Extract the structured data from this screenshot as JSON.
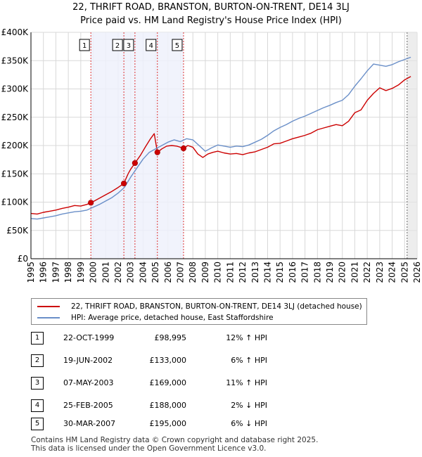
{
  "title_line1": "22, THRIFT ROAD, BRANSTON, BURTON-ON-TRENT, DE14 3LJ",
  "title_line2": "Price paid vs. HM Land Registry's House Price Index (HPI)",
  "colors": {
    "property": "#cc0000",
    "hpi": "#6a8fc8",
    "shade": "#eef1fb",
    "grid": "#d8d8d8",
    "vline": "#dd3333"
  },
  "chart_data": {
    "type": "line",
    "title": "Price paid vs. HM Land Registry's House Price Index (HPI)",
    "xlim": [
      1995,
      2026
    ],
    "ylim": [
      0,
      400000
    ],
    "x_ticks": [
      "1995",
      "1996",
      "1997",
      "1998",
      "1999",
      "2000",
      "2001",
      "2002",
      "2003",
      "2004",
      "2005",
      "2006",
      "2007",
      "2008",
      "2009",
      "2010",
      "2011",
      "2012",
      "2013",
      "2014",
      "2015",
      "2016",
      "2017",
      "2018",
      "2019",
      "2020",
      "2021",
      "2022",
      "2023",
      "2024",
      "2025",
      "2026"
    ],
    "y_ticks": [
      {
        "value": 0,
        "label": "£0"
      },
      {
        "value": 50000,
        "label": "£50K"
      },
      {
        "value": 100000,
        "label": "£100K"
      },
      {
        "value": 150000,
        "label": "£150K"
      },
      {
        "value": 200000,
        "label": "£200K"
      },
      {
        "value": 250000,
        "label": "£250K"
      },
      {
        "value": 300000,
        "label": "£300K"
      },
      {
        "value": 350000,
        "label": "£350K"
      },
      {
        "value": 400000,
        "label": "£400K"
      }
    ],
    "shaded_span": [
      1999.8,
      2007.25
    ],
    "forecast_from": 2025.2,
    "series": [
      {
        "name": "22, THRIFT ROAD, BRANSTON, BURTON-ON-TRENT, DE14 3LJ (detached house)",
        "x": [
          1995.0,
          1995.5,
          1996.0,
          1996.5,
          1997.0,
          1997.5,
          1998.0,
          1998.5,
          1999.0,
          1999.5,
          1999.81,
          2000.0,
          2000.5,
          2001.0,
          2001.5,
          2002.0,
          2002.46,
          2002.8,
          2003.0,
          2003.35,
          2003.8,
          2004.2,
          2004.6,
          2004.9,
          2005.15,
          2005.5,
          2005.9,
          2006.3,
          2006.7,
          2007.0,
          2007.25,
          2007.6,
          2008.0,
          2008.4,
          2008.8,
          2009.2,
          2009.6,
          2010.0,
          2010.5,
          2011.0,
          2011.5,
          2012.0,
          2012.5,
          2013.0,
          2013.5,
          2014.0,
          2014.5,
          2015.0,
          2015.5,
          2016.0,
          2016.5,
          2017.0,
          2017.5,
          2018.0,
          2018.5,
          2019.0,
          2019.5,
          2020.0,
          2020.5,
          2021.0,
          2021.5,
          2022.0,
          2022.5,
          2023.0,
          2023.5,
          2024.0,
          2024.5,
          2025.0,
          2025.5
        ],
        "values": [
          80000,
          79000,
          82000,
          84000,
          86000,
          89000,
          91000,
          94000,
          93000,
          96000,
          98995,
          101000,
          107000,
          113000,
          119000,
          126000,
          133000,
          150000,
          158000,
          169000,
          183000,
          198000,
          212000,
          221000,
          188000,
          194000,
          199000,
          200000,
          199000,
          197000,
          195000,
          200000,
          197000,
          185000,
          179000,
          185000,
          188000,
          190000,
          187000,
          185000,
          186000,
          184000,
          187000,
          189000,
          193000,
          197000,
          203000,
          204000,
          208000,
          212000,
          215000,
          218000,
          222000,
          228000,
          231000,
          234000,
          237000,
          235000,
          243000,
          258000,
          263000,
          280000,
          292000,
          302000,
          297000,
          301000,
          307000,
          316000,
          322000
        ]
      },
      {
        "name": "HPI: Average price, detached house, East Staffordshire",
        "x": [
          1995.0,
          1995.5,
          1996.0,
          1996.5,
          1997.0,
          1997.5,
          1998.0,
          1998.5,
          1999.0,
          1999.5,
          2000.0,
          2000.5,
          2001.0,
          2001.5,
          2002.0,
          2002.5,
          2003.0,
          2003.5,
          2004.0,
          2004.5,
          2005.0,
          2005.5,
          2006.0,
          2006.5,
          2007.0,
          2007.5,
          2008.0,
          2008.5,
          2009.0,
          2009.5,
          2010.0,
          2010.5,
          2011.0,
          2011.5,
          2012.0,
          2012.5,
          2013.0,
          2013.5,
          2014.0,
          2014.5,
          2015.0,
          2015.5,
          2016.0,
          2016.5,
          2017.0,
          2017.5,
          2018.0,
          2018.5,
          2019.0,
          2019.5,
          2020.0,
          2020.5,
          2021.0,
          2021.5,
          2022.0,
          2022.5,
          2023.0,
          2023.5,
          2024.0,
          2024.5,
          2025.0,
          2025.5
        ],
        "values": [
          71000,
          70000,
          72000,
          74000,
          76000,
          79000,
          81000,
          83000,
          84000,
          86000,
          91000,
          96000,
          102000,
          108000,
          116000,
          126000,
          144000,
          160000,
          176000,
          188000,
          194000,
          200000,
          206000,
          210000,
          207000,
          212000,
          210000,
          200000,
          190000,
          196000,
          201000,
          199000,
          197000,
          199000,
          198000,
          201000,
          206000,
          211000,
          218000,
          226000,
          232000,
          237000,
          243000,
          248000,
          252000,
          257000,
          262000,
          267000,
          271000,
          276000,
          280000,
          290000,
          305000,
          318000,
          332000,
          344000,
          342000,
          340000,
          343000,
          348000,
          352000,
          356000
        ]
      }
    ],
    "sales": [
      {
        "n": "1",
        "x": 1999.81,
        "value": 98995
      },
      {
        "n": "2",
        "x": 2002.46,
        "value": 133000
      },
      {
        "n": "3",
        "x": 2003.35,
        "value": 169000
      },
      {
        "n": "4",
        "x": 2005.15,
        "value": 188000
      },
      {
        "n": "5",
        "x": 2007.25,
        "value": 195000
      }
    ]
  },
  "legend": {
    "property_label": "22, THRIFT ROAD, BRANSTON, BURTON-ON-TRENT, DE14 3LJ (detached house)",
    "hpi_label": "HPI: Average price, detached house, East Staffordshire"
  },
  "transactions": [
    {
      "n": "1",
      "date": "22-OCT-1999",
      "price": "£98,995",
      "diff": "12% ↑ HPI"
    },
    {
      "n": "2",
      "date": "19-JUN-2002",
      "price": "£133,000",
      "diff": "6% ↑ HPI"
    },
    {
      "n": "3",
      "date": "07-MAY-2003",
      "price": "£169,000",
      "diff": "11% ↑ HPI"
    },
    {
      "n": "4",
      "date": "25-FEB-2005",
      "price": "£188,000",
      "diff": "2% ↓ HPI"
    },
    {
      "n": "5",
      "date": "30-MAR-2007",
      "price": "£195,000",
      "diff": "6% ↓ HPI"
    }
  ],
  "footer": {
    "line1": "Contains HM Land Registry data © Crown copyright and database right 2025.",
    "line2": "This data is licensed under the Open Government Licence v3.0."
  }
}
